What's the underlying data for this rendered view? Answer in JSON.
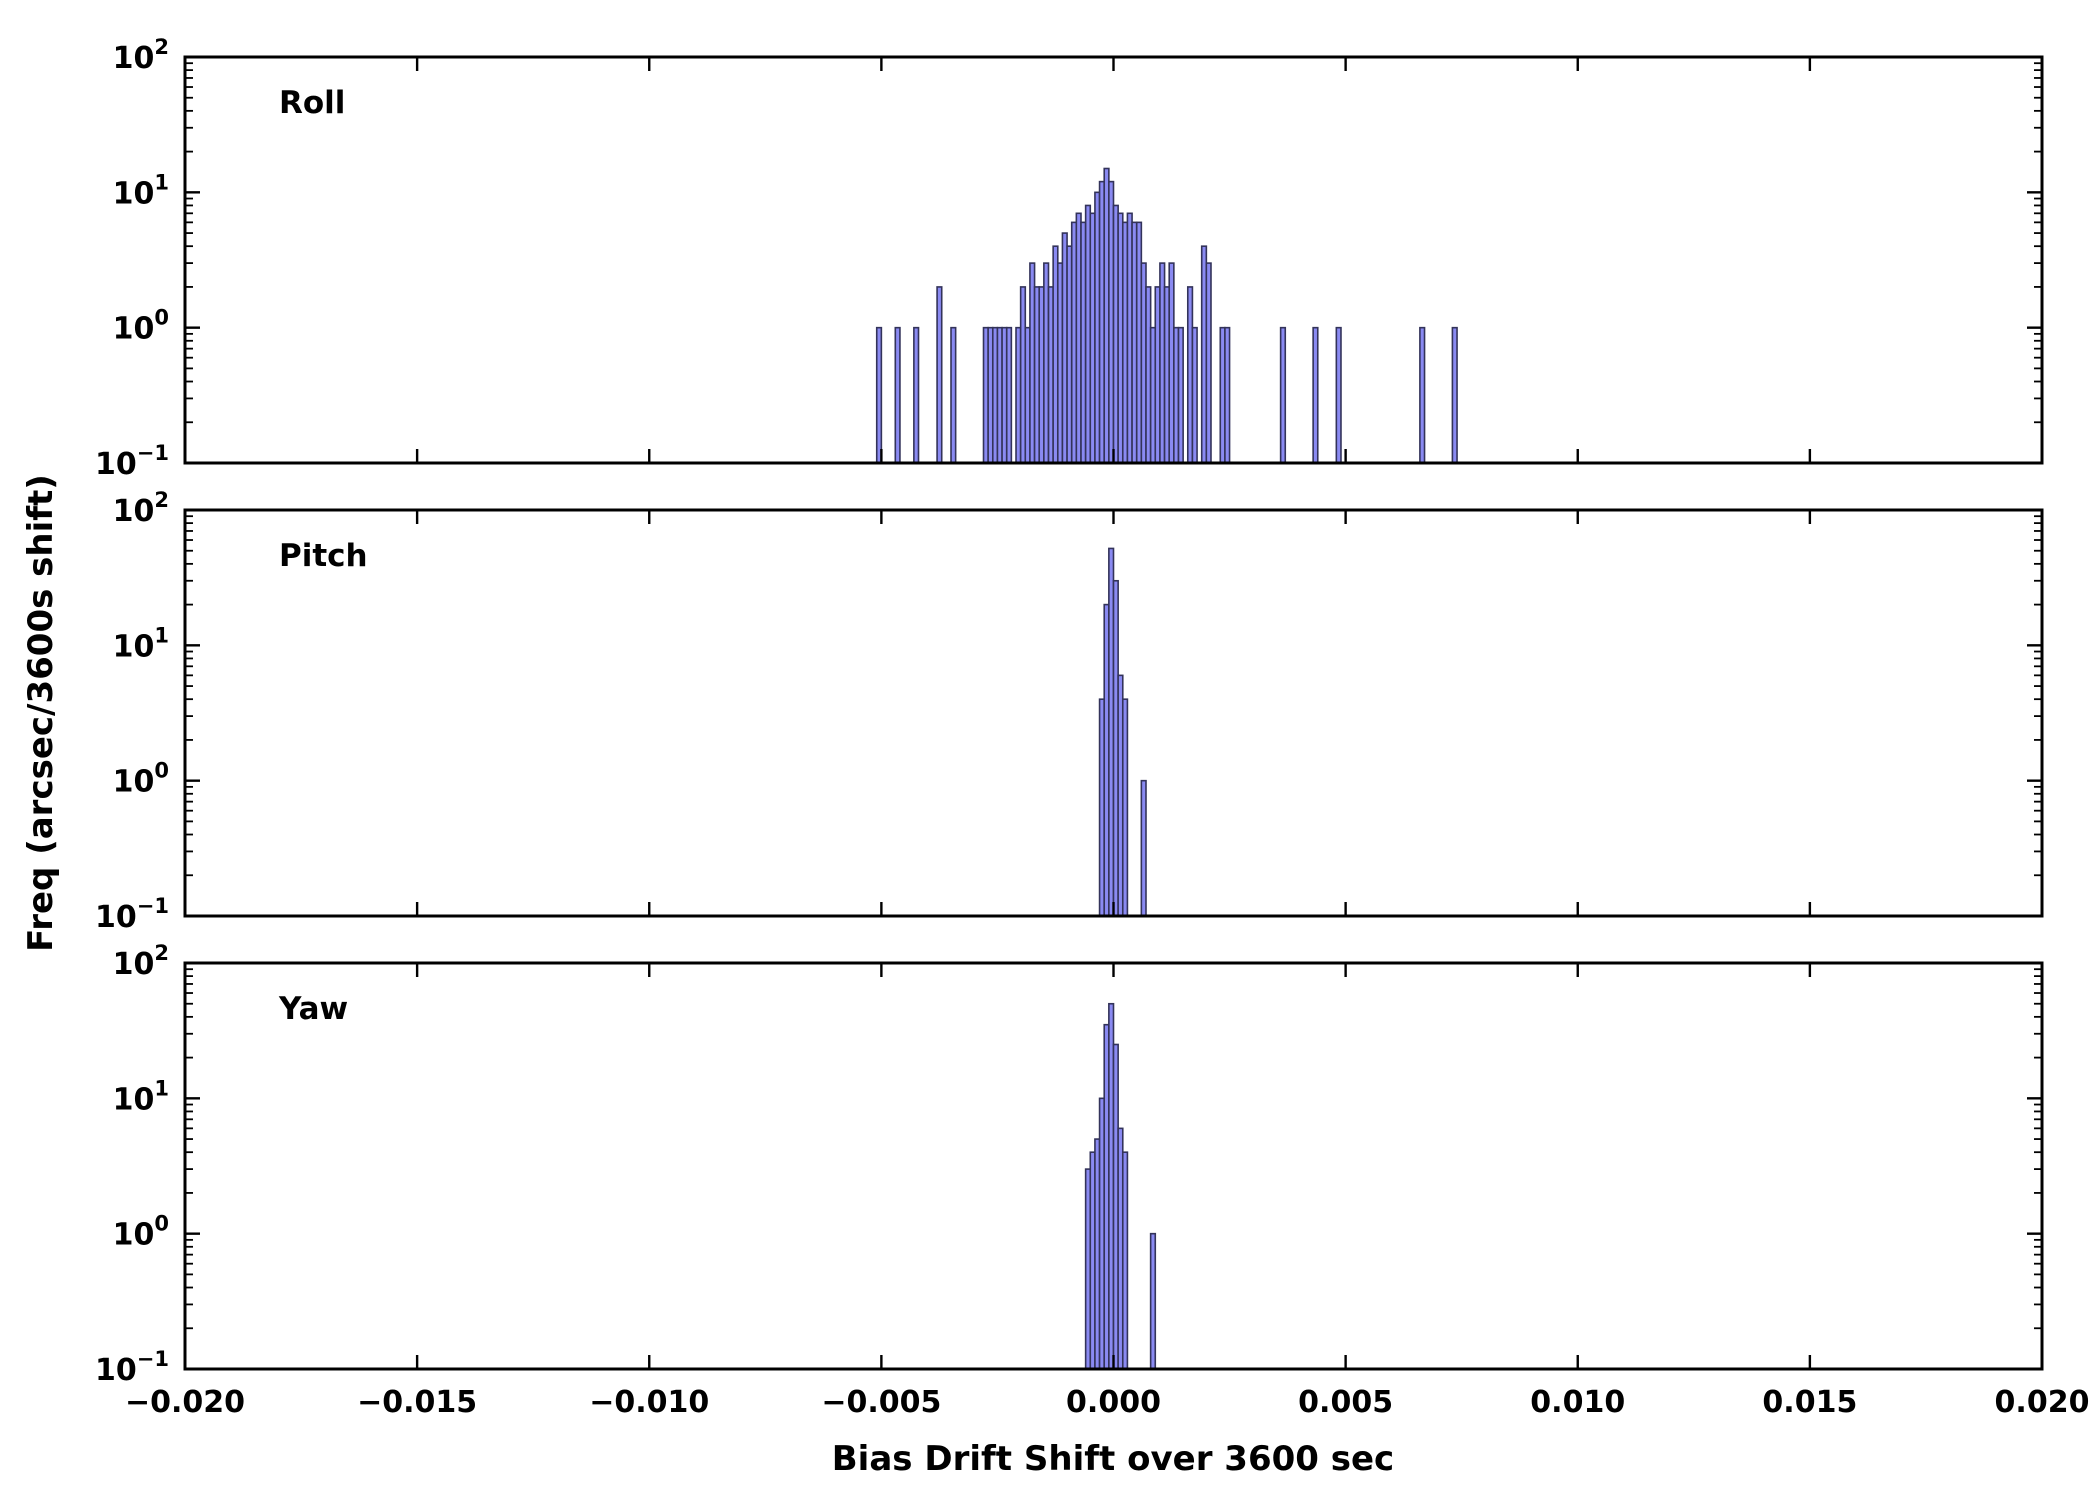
{
  "figure": {
    "xlabel": "Bias Drift Shift over 3600 sec",
    "ylabel": "Freq (arcsec/3600s shift)"
  },
  "style": {
    "background": "#ffffff",
    "bar_fill": "#8a8af2",
    "bar_edge": "#33335a",
    "axis_color": "#000000"
  },
  "axes": {
    "x_range": [
      -0.02,
      0.02
    ],
    "y_range": [
      0.1,
      100
    ],
    "y_scale": "log",
    "x_ticks": [
      {
        "value": -0.02,
        "label": "−0.020"
      },
      {
        "value": -0.015,
        "label": "−0.015"
      },
      {
        "value": -0.01,
        "label": "−0.010"
      },
      {
        "value": -0.005,
        "label": "−0.005"
      },
      {
        "value": 0.0,
        "label": "0.000"
      },
      {
        "value": 0.005,
        "label": "0.005"
      },
      {
        "value": 0.01,
        "label": "0.010"
      },
      {
        "value": 0.015,
        "label": "0.015"
      },
      {
        "value": 0.02,
        "label": "0.020"
      }
    ],
    "y_ticks": [
      {
        "exp": -1,
        "label": "−1"
      },
      {
        "exp": 0,
        "label": "0"
      },
      {
        "exp": 1,
        "label": "1"
      },
      {
        "exp": 2,
        "label": "2"
      }
    ]
  },
  "chart_data": [
    {
      "type": "bar",
      "title": "Roll",
      "bin_width": 0.0001,
      "x_range": [
        -0.02,
        0.02
      ],
      "y_range": [
        0.1,
        100
      ],
      "y_scale": "log",
      "bins": [
        [
          -0.0051,
          1
        ],
        [
          -0.0047,
          1
        ],
        [
          -0.0043,
          1
        ],
        [
          -0.0038,
          2
        ],
        [
          -0.0035,
          1
        ],
        [
          -0.0028,
          1
        ],
        [
          -0.0027,
          1
        ],
        [
          -0.0026,
          1
        ],
        [
          -0.0025,
          1
        ],
        [
          -0.0024,
          1
        ],
        [
          -0.0023,
          1
        ],
        [
          -0.0021,
          1
        ],
        [
          -0.002,
          2
        ],
        [
          -0.0019,
          1
        ],
        [
          -0.0018,
          3
        ],
        [
          -0.0017,
          2
        ],
        [
          -0.0016,
          2
        ],
        [
          -0.0015,
          3
        ],
        [
          -0.0014,
          2
        ],
        [
          -0.0013,
          4
        ],
        [
          -0.0012,
          3
        ],
        [
          -0.0011,
          5
        ],
        [
          -0.001,
          4
        ],
        [
          -0.0009,
          6
        ],
        [
          -0.0008,
          7
        ],
        [
          -0.0007,
          6
        ],
        [
          -0.0006,
          8
        ],
        [
          -0.0005,
          7
        ],
        [
          -0.0004,
          10
        ],
        [
          -0.0003,
          12
        ],
        [
          -0.0002,
          15
        ],
        [
          -0.0001,
          12
        ],
        [
          0.0,
          8
        ],
        [
          0.0001,
          7
        ],
        [
          0.0002,
          6
        ],
        [
          0.0003,
          7
        ],
        [
          0.0004,
          6
        ],
        [
          0.0005,
          6
        ],
        [
          0.0006,
          3
        ],
        [
          0.0007,
          2
        ],
        [
          0.0008,
          1
        ],
        [
          0.0009,
          2
        ],
        [
          0.001,
          3
        ],
        [
          0.0011,
          2
        ],
        [
          0.0012,
          3
        ],
        [
          0.0013,
          1
        ],
        [
          0.0014,
          1
        ],
        [
          0.0016,
          2
        ],
        [
          0.0017,
          1
        ],
        [
          0.0019,
          4
        ],
        [
          0.002,
          3
        ],
        [
          0.0023,
          1
        ],
        [
          0.0024,
          1
        ],
        [
          0.0036,
          1
        ],
        [
          0.0043,
          1
        ],
        [
          0.0048,
          1
        ],
        [
          0.0066,
          1
        ],
        [
          0.0073,
          1
        ]
      ]
    },
    {
      "type": "bar",
      "title": "Pitch",
      "bin_width": 0.0001,
      "x_range": [
        -0.02,
        0.02
      ],
      "y_range": [
        0.1,
        100
      ],
      "y_scale": "log",
      "bins": [
        [
          -0.0003,
          4
        ],
        [
          -0.0002,
          20
        ],
        [
          -0.0001,
          52
        ],
        [
          0.0,
          30
        ],
        [
          0.0001,
          6
        ],
        [
          0.0002,
          4
        ],
        [
          0.0006,
          1
        ]
      ]
    },
    {
      "type": "bar",
      "title": "Yaw",
      "bin_width": 0.0001,
      "x_range": [
        -0.02,
        0.02
      ],
      "y_range": [
        0.1,
        100
      ],
      "y_scale": "log",
      "bins": [
        [
          -0.0006,
          3
        ],
        [
          -0.0005,
          4
        ],
        [
          -0.0004,
          5
        ],
        [
          -0.0003,
          10
        ],
        [
          -0.0002,
          35
        ],
        [
          -0.0001,
          50
        ],
        [
          0.0,
          25
        ],
        [
          0.0001,
          6
        ],
        [
          0.0002,
          4
        ],
        [
          0.0008,
          1
        ]
      ]
    }
  ]
}
